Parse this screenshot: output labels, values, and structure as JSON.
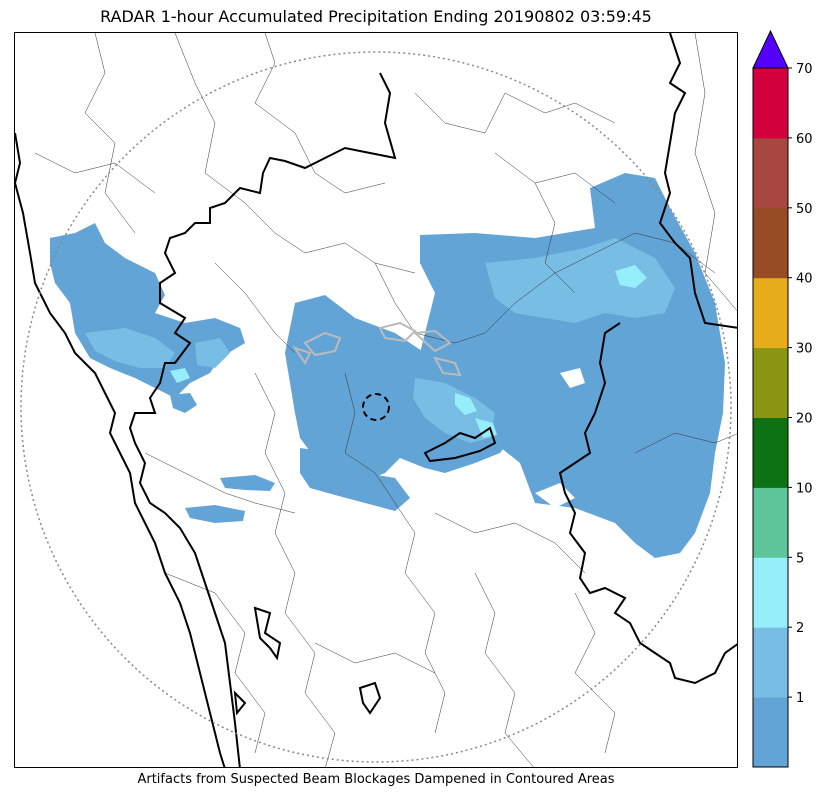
{
  "title": "RADAR 1-hour Accumulated Precipitation Ending 20190802 03:59:45",
  "caption": "Artifacts from Suspected Beam Blockages Dampened in Contoured Areas",
  "colorbar": {
    "ticks": [
      "1",
      "2",
      "5",
      "10",
      "20",
      "30",
      "40",
      "50",
      "60",
      "70"
    ],
    "colors": [
      "#63a4d6",
      "#77bde4",
      "#96eefb",
      "#5ec59b",
      "#0e7214",
      "#8a9513",
      "#e7ac19",
      "#984c26",
      "#a8473f",
      "#d4003e"
    ],
    "extend_color": "#5500ff"
  },
  "icons": {
    "radar_site": "dashed-circle-marker",
    "range_ring": "dotted-range-circle"
  }
}
